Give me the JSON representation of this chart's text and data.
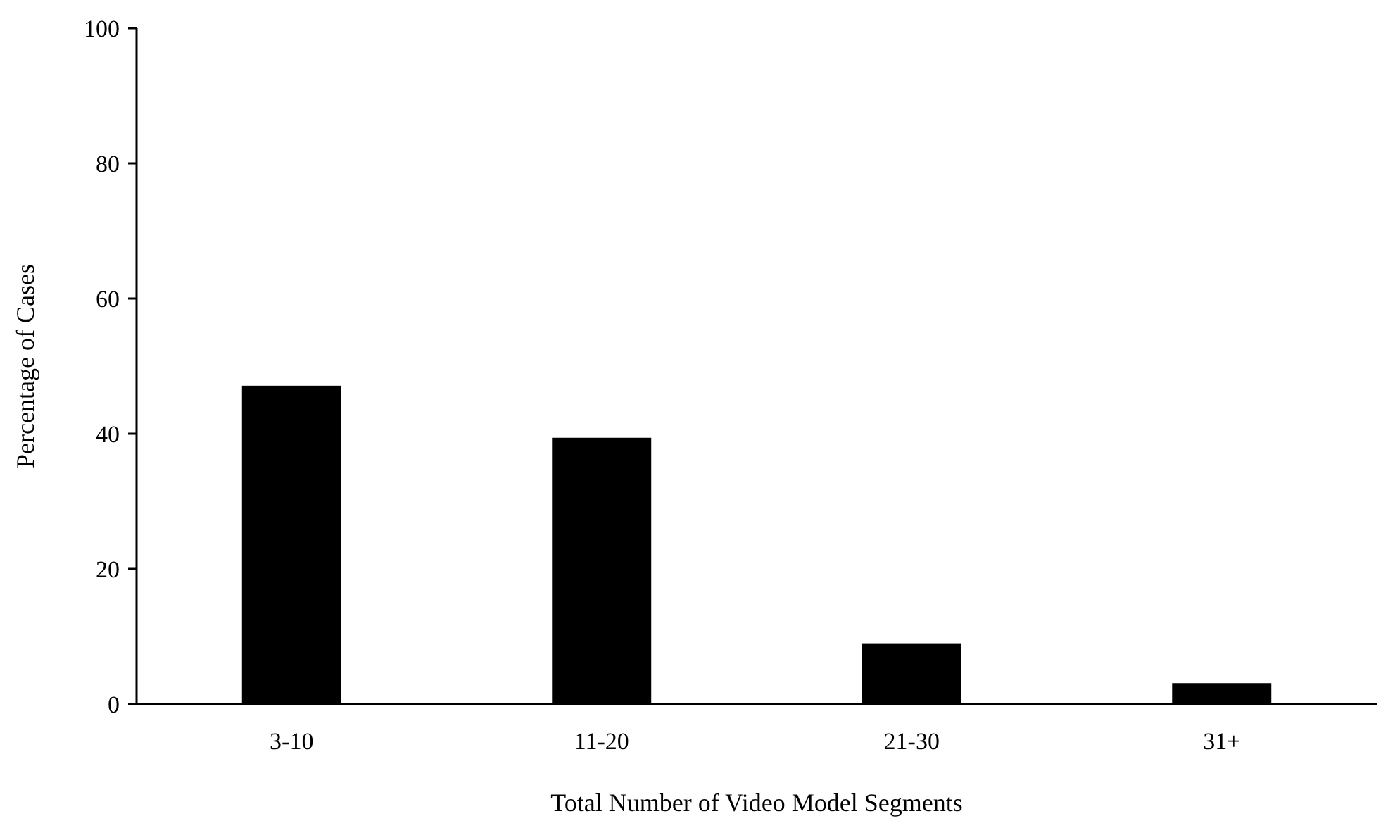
{
  "chart_data": {
    "type": "bar",
    "xlabel": "Total Number of Video Model Segments",
    "ylabel": "Percentage of Cases",
    "categories": [
      "3-10",
      "11-20",
      "21-30",
      "31+"
    ],
    "values": [
      47.1,
      39.4,
      9,
      3.1
    ],
    "color": "#000000",
    "ylim": [
      0,
      100
    ],
    "yticks": [
      0,
      20,
      40,
      60,
      80,
      100
    ],
    "grid": false
  }
}
